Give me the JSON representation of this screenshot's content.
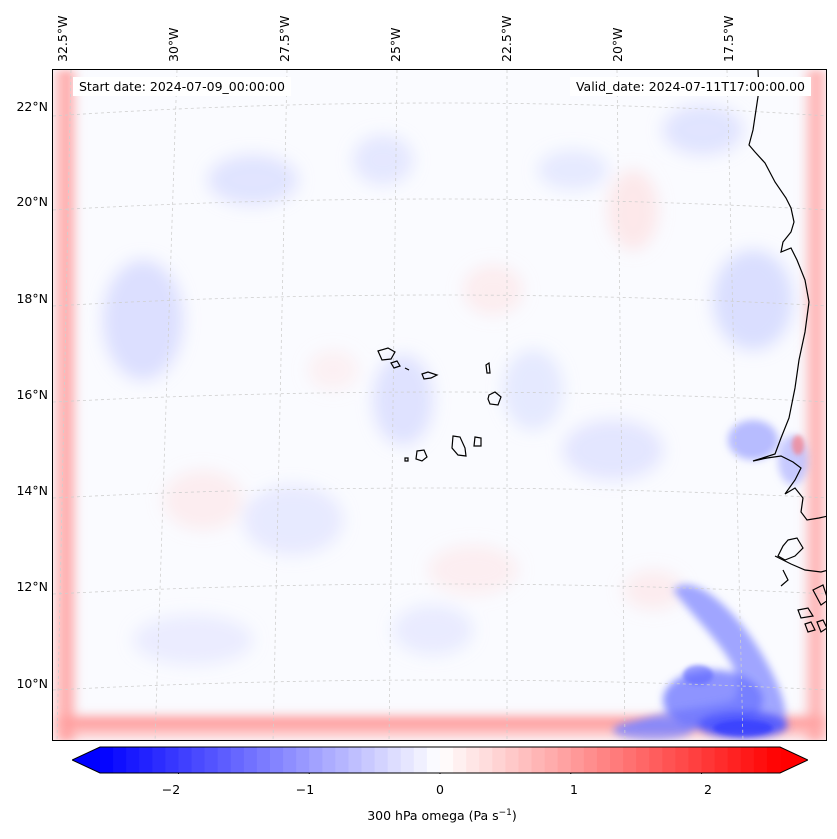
{
  "header": {
    "start_date": "Start date: 2024-07-09_00:00:00",
    "valid_date": "Valid_date: 2024-07-11T17:00:00.00"
  },
  "axes": {
    "lon_labels": [
      "32.5°W",
      "30°W",
      "27.5°W",
      "25°W",
      "22.5°W",
      "20°W",
      "17.5°W"
    ],
    "lat_labels": [
      "22°N",
      "20°N",
      "18°N",
      "16°N",
      "14°N",
      "12°N",
      "10°N"
    ]
  },
  "colorbar": {
    "ticks": [
      "−2",
      "−1",
      "0",
      "1",
      "2"
    ],
    "label_prefix": "300 hPa omega (Pa s",
    "label_exp": "−1",
    "label_suffix": ")",
    "min": -2.6,
    "max": 2.6,
    "colors": {
      "negative": "#0000ff",
      "zero": "#ffffff",
      "positive": "#ff0000"
    }
  },
  "chart_data": {
    "type": "heatmap",
    "variable": "300 hPa omega",
    "units": "Pa s^-1",
    "extent_lon": [
      -33.0,
      -15.5
    ],
    "extent_lat": [
      9.0,
      22.7
    ],
    "colorbar_range": [
      -2.6,
      2.6
    ],
    "colorbar_ticks": [
      -2,
      -1,
      0,
      1,
      2
    ],
    "features": [
      {
        "name": "boundary ascent band (south)",
        "value": 1.2
      },
      {
        "name": "boundary ascent band (west)",
        "value": 0.9
      },
      {
        "name": "boundary ascent band (east)",
        "value": 0.9
      },
      {
        "name": "descent cluster near 17W 10N",
        "value": -1.6
      },
      {
        "name": "descent patch off Senegal coast",
        "value": -0.8
      },
      {
        "name": "background field",
        "value": 0.0
      }
    ]
  }
}
